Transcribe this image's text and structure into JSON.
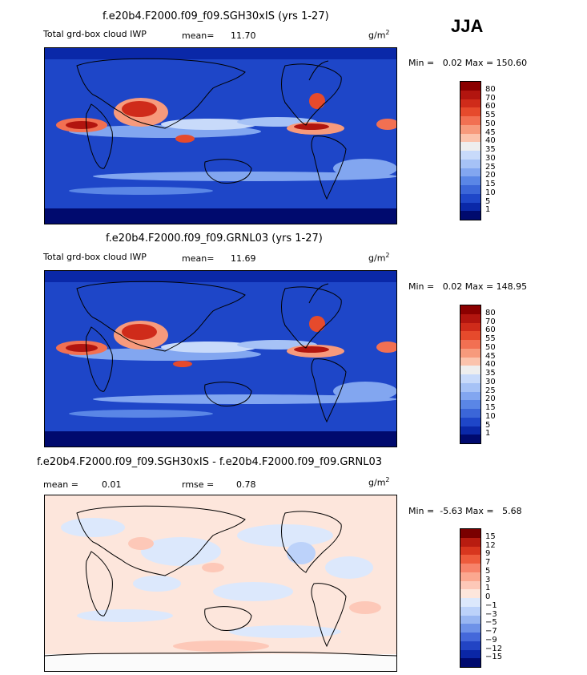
{
  "season": "JJA",
  "panels": [
    {
      "title": "f.e20b4.F2000.f09_f09.SGH30xIS (yrs 1-27)",
      "variable": "Total grd-box cloud IWP",
      "mean_label": "mean=",
      "mean_value": "11.70",
      "units_base": "g/m",
      "units_exp": "2",
      "minmax": "Min =   0.02 Max = 150.60",
      "levels": [
        "80",
        "70",
        "60",
        "55",
        "50",
        "45",
        "40",
        "35",
        "30",
        "25",
        "20",
        "15",
        "10",
        "5",
        "1"
      ],
      "colors": [
        "#8b0000",
        "#b2150f",
        "#cf2b1a",
        "#e64a2c",
        "#f27052",
        "#f79a7c",
        "#fbc3ac",
        "#eeeeee",
        "#c8dafa",
        "#a6c2f6",
        "#82a6f0",
        "#5a86e6",
        "#3b66d8",
        "#1e46c8",
        "#0a28a8",
        "#000a6e"
      ]
    },
    {
      "title": "f.e20b4.F2000.f09_f09.GRNL03 (yrs 1-27)",
      "variable": "Total grd-box cloud IWP",
      "mean_label": "mean=",
      "mean_value": "11.69",
      "units_base": "g/m",
      "units_exp": "2",
      "minmax": "Min =   0.02 Max = 148.95",
      "levels": [
        "80",
        "70",
        "60",
        "55",
        "50",
        "45",
        "40",
        "35",
        "30",
        "25",
        "20",
        "15",
        "10",
        "5",
        "1"
      ],
      "colors": [
        "#8b0000",
        "#b2150f",
        "#cf2b1a",
        "#e64a2c",
        "#f27052",
        "#f79a7c",
        "#fbc3ac",
        "#eeeeee",
        "#c8dafa",
        "#a6c2f6",
        "#82a6f0",
        "#5a86e6",
        "#3b66d8",
        "#1e46c8",
        "#0a28a8",
        "#000a6e"
      ]
    },
    {
      "title": "f.e20b4.F2000.f09_f09.SGH30xIS - f.e20b4.F2000.f09_f09.GRNL03",
      "mean_label": "mean =",
      "mean_value": "0.01",
      "rmse_label": "rmse =",
      "rmse_value": "0.78",
      "units_base": "g/m",
      "units_exp": "2",
      "minmax": "Min =  -5.63 Max =   5.68",
      "levels": [
        "15",
        "12",
        "9",
        "7",
        "5",
        "3",
        "1",
        "0",
        "−1",
        "−3",
        "−5",
        "−7",
        "−9",
        "−12",
        "−15"
      ],
      "colors": [
        "#7a0000",
        "#b81c10",
        "#d8361e",
        "#ee5b3c",
        "#f7836a",
        "#fba890",
        "#fdc8b8",
        "#fde6dc",
        "#dce8fc",
        "#bcd2fa",
        "#98b6f2",
        "#6e92e8",
        "#4468da",
        "#2244c4",
        "#0a26a6",
        "#000a6e"
      ]
    }
  ]
}
